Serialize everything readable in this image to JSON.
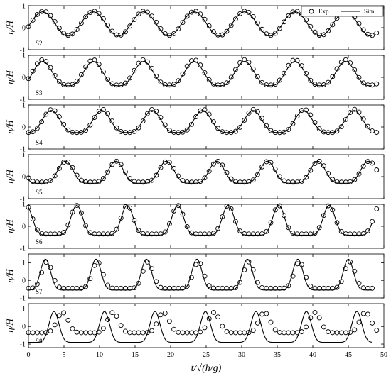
{
  "chart_data": {
    "type": "line",
    "xlabel": "t/√(h/g)",
    "ylabel": "η/H",
    "xlim": [
      0,
      50
    ],
    "x_ticks": [
      0,
      5,
      10,
      15,
      20,
      25,
      30,
      35,
      40,
      45,
      50
    ],
    "grid": false,
    "legend": {
      "placement": "top-right (first panel)",
      "entries": [
        {
          "name": "Exp",
          "marker": "open-circle"
        },
        {
          "name": "Sim",
          "marker": "solid-line"
        }
      ]
    },
    "panels": [
      {
        "label": "S2",
        "ylim": [
          -1,
          1
        ],
        "y_ticks": [
          -1,
          0,
          1
        ],
        "sim": {
          "period": 7.1,
          "phase": 2.0,
          "amplitude_max": 0.72,
          "amplitude_min": -0.38,
          "shape": 0.0
        },
        "exp": {
          "period": 7.1,
          "phase": 2.1,
          "amplitude_max": 0.75,
          "amplitude_min": -0.35,
          "shape": 0.0,
          "start": 0.0,
          "end": 49.2
        }
      },
      {
        "label": "S3",
        "ylim": [
          -1,
          1
        ],
        "y_ticks": [
          -1,
          0,
          1
        ],
        "sim": {
          "period": 7.1,
          "phase": 2.0,
          "amplitude_max": 0.72,
          "amplitude_min": -0.38,
          "shape": 0.1
        },
        "exp": {
          "period": 7.1,
          "phase": 2.0,
          "amplitude_max": 0.8,
          "amplitude_min": -0.35,
          "shape": 0.1,
          "start": 0.0,
          "end": 49.2
        }
      },
      {
        "label": "S4",
        "ylim": [
          -1,
          1
        ],
        "y_ticks": [
          -1,
          0,
          1
        ],
        "sim": {
          "period": 7.1,
          "phase": 3.2,
          "amplitude_max": 0.75,
          "amplitude_min": -0.25,
          "shape": 0.15
        },
        "exp": {
          "period": 7.1,
          "phase": 3.3,
          "amplitude_max": 0.8,
          "amplitude_min": -0.25,
          "shape": 0.15,
          "start": 0.0,
          "end": 49.2
        }
      },
      {
        "label": "S5",
        "ylim": [
          -1,
          1
        ],
        "y_ticks": [
          -1,
          0,
          1
        ],
        "sim": {
          "period": 7.1,
          "phase": 5.2,
          "amplitude_max": 0.7,
          "amplitude_min": -0.3,
          "shape": 0.25
        },
        "exp": {
          "period": 7.1,
          "phase": 5.3,
          "amplitude_max": 0.7,
          "amplitude_min": -0.25,
          "shape": 0.25,
          "start": 0.0,
          "end": 49.2
        }
      },
      {
        "label": "S6",
        "ylim": [
          -1,
          1
        ],
        "y_ticks": [
          -1,
          0,
          1
        ],
        "sim": {
          "period": 7.1,
          "phase": 6.8,
          "amplitude_max": 0.95,
          "amplitude_min": -0.4,
          "shape": 0.55
        },
        "exp": {
          "period": 7.1,
          "phase": 6.8,
          "amplitude_max": 0.95,
          "amplitude_min": -0.35,
          "shape": 0.55,
          "start": 0.0,
          "end": 49.2
        }
      },
      {
        "label": "S7",
        "ylim": [
          -1,
          1.5
        ],
        "y_ticks": [
          -1,
          0,
          1
        ],
        "sim": {
          "period": 7.1,
          "phase": 2.4,
          "amplitude_max": 1.2,
          "amplitude_min": -0.55,
          "shape": 0.8
        },
        "exp": {
          "period": 7.1,
          "phase": 2.6,
          "amplitude_max": 1.05,
          "amplitude_min": -0.45,
          "shape": 0.75,
          "start": 0.0,
          "end": 48.5
        }
      },
      {
        "label": "S8",
        "ylim": [
          -1.2,
          1.3
        ],
        "y_ticks": [
          -1,
          0,
          1
        ],
        "sim": {
          "period": 7.1,
          "phase": 3.6,
          "amplitude_max": 0.85,
          "amplitude_min": -0.9,
          "shape": 0.85
        },
        "exp": {
          "period": 7.1,
          "phase": 4.8,
          "amplitude_max": 0.8,
          "amplitude_min": -0.35,
          "shape": 0.6,
          "start": 0.0,
          "end": 49.5
        }
      }
    ]
  }
}
